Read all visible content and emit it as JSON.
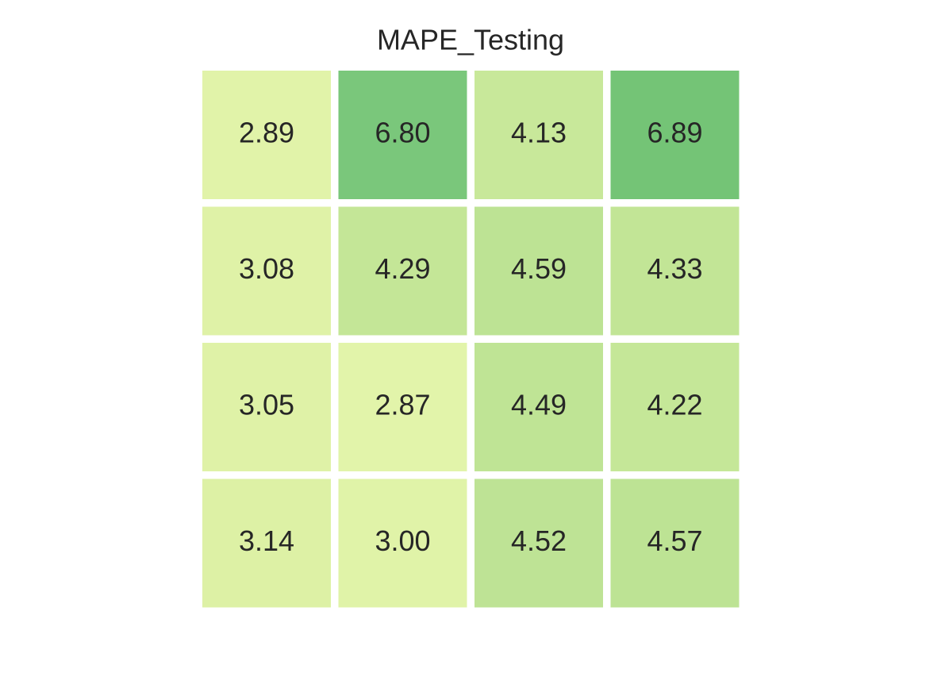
{
  "chart_data": {
    "type": "heatmap",
    "title": "MAPE_Testing",
    "values": [
      [
        2.89,
        6.8,
        4.13,
        6.89
      ],
      [
        3.08,
        4.29,
        4.59,
        4.33
      ],
      [
        3.05,
        2.87,
        4.49,
        4.22
      ],
      [
        3.14,
        3.0,
        4.52,
        4.57
      ]
    ],
    "value_labels": [
      [
        "2.89",
        "6.80",
        "4.13",
        "6.89"
      ],
      [
        "3.08",
        "4.29",
        "4.59",
        "4.33"
      ],
      [
        "3.05",
        "2.87",
        "4.49",
        "4.22"
      ],
      [
        "3.14",
        "3.00",
        "4.52",
        "4.57"
      ]
    ],
    "colors": [
      [
        "#e1f3a9",
        "#7ac77b",
        "#c8e89a",
        "#74c476"
      ],
      [
        "#dff2a7",
        "#c4e697",
        "#bde394",
        "#c2e596"
      ],
      [
        "#dff2a7",
        "#e2f4aa",
        "#bfe495",
        "#c5e798"
      ],
      [
        "#ddf1a5",
        "#e0f3a8",
        "#bee395",
        "#bde394"
      ]
    ]
  }
}
